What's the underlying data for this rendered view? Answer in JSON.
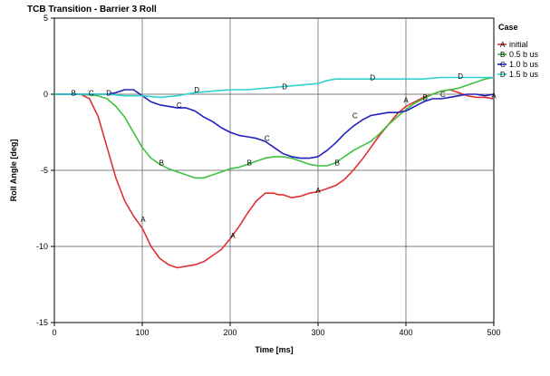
{
  "chart_data": {
    "type": "line",
    "title": "TCB Transition - Barrier 3 Roll",
    "xlabel": "Time [ms]",
    "ylabel": "Roll Angle [deg]",
    "xlim": [
      0,
      500
    ],
    "ylim": [
      -15,
      5
    ],
    "xticks": [
      0,
      100,
      200,
      300,
      400,
      500
    ],
    "yticks": [
      5,
      0,
      -5,
      -10,
      -15
    ],
    "grid": true,
    "legend_title": "Case",
    "legend_position": "right",
    "series": [
      {
        "name": "initial",
        "marker": "A",
        "color": "#e03030",
        "x": [
          0,
          30,
          40,
          50,
          60,
          70,
          80,
          90,
          100,
          110,
          120,
          130,
          140,
          150,
          160,
          170,
          180,
          190,
          200,
          210,
          220,
          230,
          240,
          250,
          255,
          260,
          270,
          280,
          290,
          300,
          310,
          320,
          330,
          340,
          350,
          360,
          370,
          380,
          390,
          400,
          410,
          420,
          430,
          440,
          450,
          460,
          470,
          480,
          490,
          500
        ],
        "y": [
          0,
          0,
          -0.3,
          -1.5,
          -3.5,
          -5.5,
          -7.0,
          -8.0,
          -8.8,
          -10.0,
          -10.8,
          -11.2,
          -11.4,
          -11.3,
          -11.2,
          -11.0,
          -10.6,
          -10.2,
          -9.5,
          -8.7,
          -7.8,
          -7.0,
          -6.5,
          -6.5,
          -6.6,
          -6.6,
          -6.8,
          -6.7,
          -6.5,
          -6.4,
          -6.2,
          -6.0,
          -5.6,
          -5.0,
          -4.3,
          -3.5,
          -2.7,
          -2.0,
          -1.3,
          -0.8,
          -0.5,
          -0.2,
          0,
          0.2,
          0.3,
          0.1,
          -0.1,
          -0.2,
          -0.2,
          -0.3
        ]
      },
      {
        "name": "0.5 b us",
        "marker": "B",
        "color": "#40c040",
        "x": [
          0,
          30,
          50,
          60,
          70,
          80,
          90,
          100,
          110,
          120,
          130,
          140,
          150,
          160,
          170,
          180,
          190,
          200,
          210,
          220,
          230,
          240,
          250,
          260,
          270,
          280,
          290,
          300,
          310,
          320,
          330,
          340,
          350,
          360,
          370,
          380,
          390,
          400,
          410,
          420,
          430,
          440,
          450,
          460,
          470,
          480,
          490,
          500
        ],
        "y": [
          0,
          0,
          -0.1,
          -0.3,
          -0.8,
          -1.5,
          -2.5,
          -3.5,
          -4.2,
          -4.6,
          -4.9,
          -5.1,
          -5.3,
          -5.5,
          -5.5,
          -5.3,
          -5.1,
          -4.9,
          -4.8,
          -4.6,
          -4.4,
          -4.2,
          -4.1,
          -4.1,
          -4.2,
          -4.4,
          -4.6,
          -4.7,
          -4.7,
          -4.5,
          -4.1,
          -3.7,
          -3.4,
          -3.1,
          -2.6,
          -2.0,
          -1.5,
          -1.0,
          -0.6,
          -0.3,
          0,
          0.2,
          0.3,
          0.4,
          0.6,
          0.8,
          1.0,
          1.1
        ]
      },
      {
        "name": "1.0 b us",
        "marker": "C",
        "color": "#2020c0",
        "x": [
          0,
          40,
          60,
          70,
          80,
          90,
          100,
          110,
          120,
          130,
          140,
          150,
          160,
          170,
          180,
          190,
          200,
          210,
          220,
          230,
          240,
          250,
          260,
          270,
          280,
          290,
          300,
          310,
          320,
          330,
          340,
          350,
          360,
          370,
          380,
          390,
          400,
          410,
          420,
          430,
          440,
          450,
          460,
          470,
          480,
          490,
          500
        ],
        "y": [
          0,
          0,
          0,
          0.1,
          0.3,
          0.3,
          -0.1,
          -0.5,
          -0.7,
          -0.8,
          -0.9,
          -0.9,
          -1.1,
          -1.5,
          -1.8,
          -2.2,
          -2.5,
          -2.7,
          -2.8,
          -2.9,
          -3.1,
          -3.5,
          -3.9,
          -4.1,
          -4.2,
          -4.2,
          -4.1,
          -3.7,
          -3.2,
          -2.6,
          -2.1,
          -1.7,
          -1.4,
          -1.3,
          -1.2,
          -1.2,
          -1.1,
          -0.8,
          -0.5,
          -0.3,
          -0.3,
          -0.2,
          -0.1,
          0,
          0,
          -0.1,
          0
        ]
      },
      {
        "name": "1.5 b us",
        "marker": "D",
        "color": "#30d0d0",
        "x": [
          0,
          60,
          80,
          100,
          120,
          140,
          160,
          180,
          200,
          220,
          240,
          260,
          280,
          300,
          310,
          320,
          340,
          360,
          380,
          400,
          420,
          440,
          460,
          480,
          500
        ],
        "y": [
          0,
          0,
          -0.1,
          -0.1,
          -0.2,
          -0.1,
          0.1,
          0.2,
          0.3,
          0.3,
          0.4,
          0.5,
          0.6,
          0.7,
          0.9,
          1.0,
          1.0,
          1.0,
          1.0,
          1.0,
          1.0,
          1.1,
          1.1,
          1.1,
          1.1
        ]
      }
    ],
    "marker_labels": [
      {
        "text": "A",
        "series": 0,
        "x": 101,
        "y": -8.2
      },
      {
        "text": "A",
        "series": 0,
        "x": 203,
        "y": -9.3
      },
      {
        "text": "A",
        "series": 0,
        "x": 300,
        "y": -6.3
      },
      {
        "text": "A",
        "series": 0,
        "x": 400,
        "y": -0.4
      },
      {
        "text": "A",
        "series": 0,
        "x": 500,
        "y": -0.1
      },
      {
        "text": "B",
        "series": 1,
        "x": 22,
        "y": 0.1
      },
      {
        "text": "B",
        "series": 1,
        "x": 122,
        "y": -4.5
      },
      {
        "text": "B",
        "series": 1,
        "x": 222,
        "y": -4.5
      },
      {
        "text": "B",
        "series": 1,
        "x": 322,
        "y": -4.5
      },
      {
        "text": "B",
        "series": 1,
        "x": 422,
        "y": -0.2
      },
      {
        "text": "C",
        "series": 2,
        "x": 42,
        "y": 0.1
      },
      {
        "text": "C",
        "series": 2,
        "x": 142,
        "y": -0.7
      },
      {
        "text": "C",
        "series": 2,
        "x": 242,
        "y": -2.9
      },
      {
        "text": "C",
        "series": 2,
        "x": 342,
        "y": -1.4
      },
      {
        "text": "C",
        "series": 2,
        "x": 442,
        "y": 0
      },
      {
        "text": "D",
        "series": 3,
        "x": 62,
        "y": 0.1
      },
      {
        "text": "D",
        "series": 3,
        "x": 162,
        "y": 0.3
      },
      {
        "text": "D",
        "series": 3,
        "x": 262,
        "y": 0.5
      },
      {
        "text": "D",
        "series": 3,
        "x": 362,
        "y": 1.1
      },
      {
        "text": "D",
        "series": 3,
        "x": 462,
        "y": 1.2
      }
    ]
  }
}
